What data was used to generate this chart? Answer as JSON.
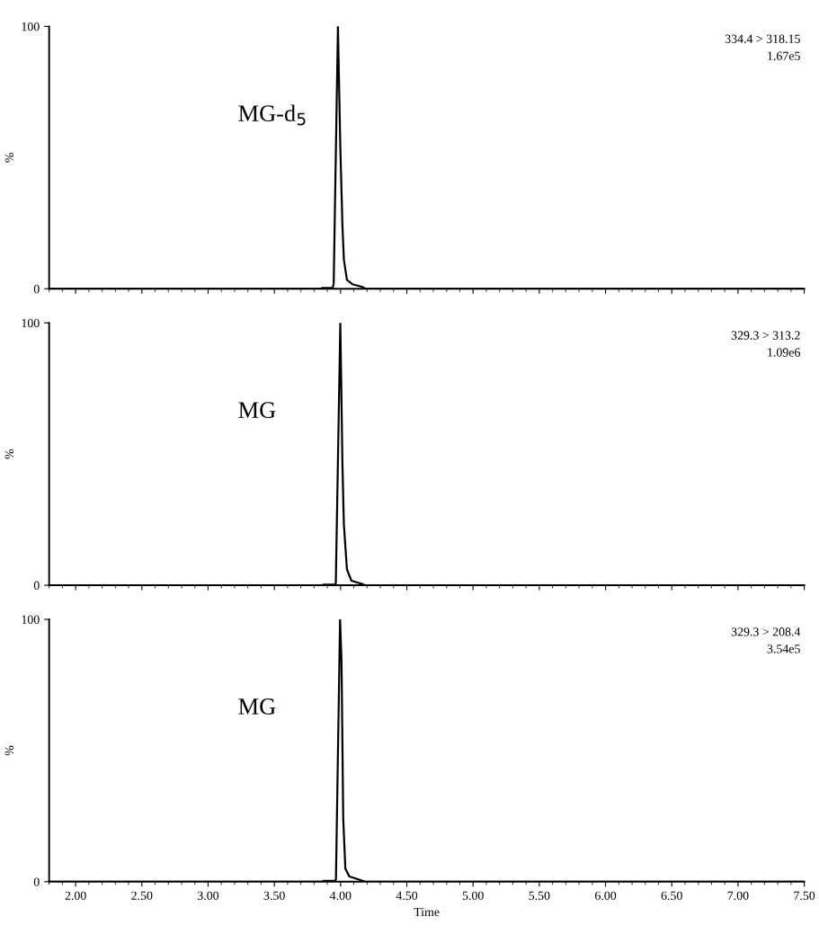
{
  "chart_data": [
    {
      "type": "line",
      "ylabel": "%",
      "annotations": [
        "MG-d$_{5}$",
        "334.4 > 318.15",
        "1.67e5"
      ],
      "xlim": [
        1.8,
        7.5
      ],
      "ylim": [
        0,
        100
      ],
      "yticks": [
        0,
        100
      ],
      "xticks": [
        {
          "value": 2.0,
          "label": null
        },
        {
          "value": 2.5,
          "label": null
        },
        {
          "value": 3.0,
          "label": null
        },
        {
          "value": 3.5,
          "label": null
        },
        {
          "value": 4.0,
          "label": null
        },
        {
          "value": 4.5,
          "label": null
        },
        {
          "value": 5.0,
          "label": null
        },
        {
          "value": 5.5,
          "label": null
        },
        {
          "value": 6.0,
          "label": null
        },
        {
          "value": 6.5,
          "label": null
        },
        {
          "value": 7.0,
          "label": null
        },
        {
          "value": 7.5,
          "label": null
        }
      ],
      "tick_labels": "y",
      "grid": false,
      "legend": false,
      "series": [
        {
          "color": "#000000",
          "x": [
            1.8,
            3.85,
            3.86,
            3.94,
            3.948,
            3.98,
            3.998,
            4.014,
            4.025,
            4.048,
            4.091,
            4.172,
            4.18,
            7.5
          ],
          "values": [
            0,
            0,
            0.3,
            0.3,
            2,
            100,
            54,
            24,
            11,
            3.4,
            1.7,
            0.6,
            0,
            0
          ]
        }
      ]
    },
    {
      "type": "line",
      "ylabel": "%",
      "annotations": [
        "MG",
        "329.3 > 313.2",
        "1.09e6"
      ],
      "xlim": [
        1.8,
        7.5
      ],
      "ylim": [
        0,
        100
      ],
      "yticks": [
        0,
        100
      ],
      "xticks": [
        {
          "value": 2.0,
          "label": null
        },
        {
          "value": 2.5,
          "label": null
        },
        {
          "value": 3.0,
          "label": null
        },
        {
          "value": 3.5,
          "label": null
        },
        {
          "value": 4.0,
          "label": null
        },
        {
          "value": 4.5,
          "label": null
        },
        {
          "value": 5.0,
          "label": null
        },
        {
          "value": 5.5,
          "label": null
        },
        {
          "value": 6.0,
          "label": null
        },
        {
          "value": 6.5,
          "label": null
        },
        {
          "value": 7.0,
          "label": null
        },
        {
          "value": 7.5,
          "label": null
        }
      ],
      "tick_labels": "y",
      "grid": false,
      "legend": false,
      "series": [
        {
          "color": "#000000",
          "x": [
            1.8,
            3.86,
            3.87,
            3.96,
            3.964,
            3.998,
            4.014,
            4.025,
            4.048,
            4.082,
            4.172,
            4.18,
            7.5
          ],
          "values": [
            0,
            0,
            0.2,
            0.2,
            1,
            100,
            46,
            23,
            6,
            1.7,
            0.3,
            0,
            0
          ]
        }
      ]
    },
    {
      "type": "line",
      "ylabel": "%",
      "xlabel": "Time",
      "annotations": [
        "MG",
        "329.3 > 208.4",
        "3.54e5"
      ],
      "xlim": [
        1.8,
        7.5
      ],
      "ylim": [
        0,
        100
      ],
      "yticks": [
        0,
        100
      ],
      "xticks": [
        {
          "value": 2.0,
          "label": "2.00"
        },
        {
          "value": 2.5,
          "label": "2.50"
        },
        {
          "value": 3.0,
          "label": "3.00"
        },
        {
          "value": 3.5,
          "label": "3.50"
        },
        {
          "value": 4.0,
          "label": "4.00"
        },
        {
          "value": 4.5,
          "label": "4.50"
        },
        {
          "value": 5.0,
          "label": "5.00"
        },
        {
          "value": 5.5,
          "label": "5.50"
        },
        {
          "value": 6.0,
          "label": "6.00"
        },
        {
          "value": 6.5,
          "label": "6.50"
        },
        {
          "value": 7.0,
          "label": "7.00"
        },
        {
          "value": 7.5,
          "label": "7.50"
        }
      ],
      "grid": false,
      "legend": false,
      "series": [
        {
          "color": "#000000",
          "x": [
            1.8,
            3.86,
            3.87,
            3.96,
            3.965,
            3.996,
            4.007,
            4.02,
            4.036,
            4.066,
            4.172,
            4.18,
            7.5
          ],
          "values": [
            0,
            0,
            0.3,
            0.3,
            1,
            100,
            84,
            24,
            5,
            2,
            0.3,
            0,
            0
          ]
        }
      ]
    }
  ]
}
